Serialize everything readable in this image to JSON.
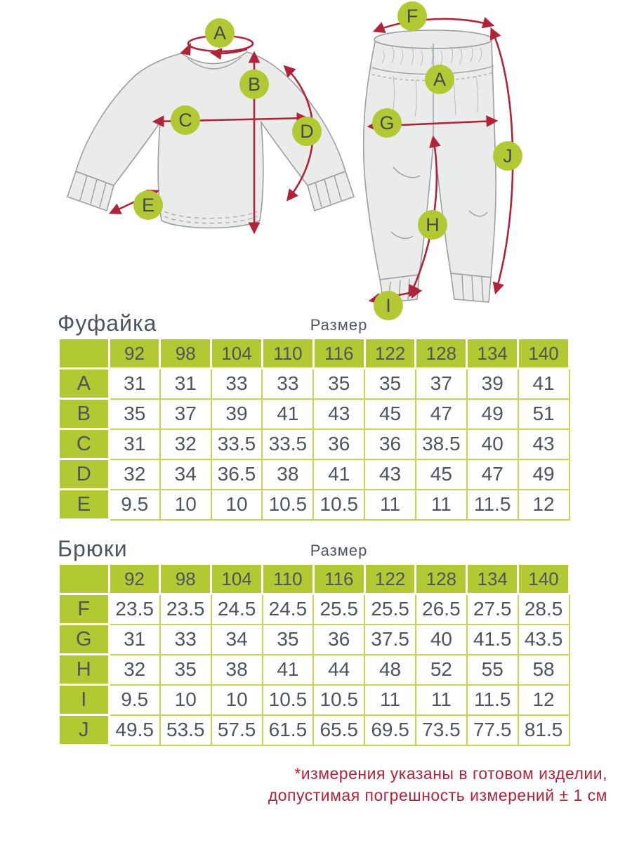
{
  "page": {
    "footnote_line1": "*измерения указаны в готовом изделии,",
    "footnote_line2": "допустимая погрешность измерений ± 1 см"
  },
  "colors": {
    "green": "#b3c934",
    "grid_green": "#c6d54f",
    "text_dark": "#4d5560",
    "red": "#b02338",
    "garment_fill": "#eaeceb",
    "garment_line": "#9b9ea0"
  },
  "diagram": {
    "shirt_markers": [
      "A",
      "B",
      "C",
      "D",
      "E"
    ],
    "pants_markers": [
      "F",
      "A",
      "G",
      "J",
      "H",
      "I"
    ]
  },
  "tables": [
    {
      "title": "Фуфайка",
      "size_label": "Размер",
      "sizes": [
        "92",
        "98",
        "104",
        "110",
        "116",
        "122",
        "128",
        "134",
        "140"
      ],
      "rows": [
        {
          "label": "A",
          "values": [
            "31",
            "31",
            "33",
            "33",
            "35",
            "35",
            "37",
            "39",
            "41"
          ]
        },
        {
          "label": "B",
          "values": [
            "35",
            "37",
            "39",
            "41",
            "43",
            "45",
            "47",
            "49",
            "51"
          ]
        },
        {
          "label": "C",
          "values": [
            "31",
            "32",
            "33.5",
            "33.5",
            "36",
            "36",
            "38.5",
            "40",
            "43"
          ]
        },
        {
          "label": "D",
          "values": [
            "32",
            "34",
            "36.5",
            "38",
            "41",
            "43",
            "45",
            "47",
            "49"
          ]
        },
        {
          "label": "E",
          "values": [
            "9.5",
            "10",
            "10",
            "10.5",
            "10.5",
            "11",
            "11",
            "11.5",
            "12"
          ]
        }
      ]
    },
    {
      "title": "Брюки",
      "size_label": "Размер",
      "sizes": [
        "92",
        "98",
        "104",
        "110",
        "116",
        "122",
        "128",
        "134",
        "140"
      ],
      "rows": [
        {
          "label": "F",
          "values": [
            "23.5",
            "23.5",
            "24.5",
            "24.5",
            "25.5",
            "25.5",
            "26.5",
            "27.5",
            "28.5"
          ]
        },
        {
          "label": "G",
          "values": [
            "31",
            "33",
            "34",
            "35",
            "36",
            "37.5",
            "40",
            "41.5",
            "43.5"
          ]
        },
        {
          "label": "H",
          "values": [
            "32",
            "35",
            "38",
            "41",
            "44",
            "48",
            "52",
            "55",
            "58"
          ]
        },
        {
          "label": "I",
          "values": [
            "9.5",
            "10",
            "10",
            "10.5",
            "10.5",
            "11",
            "11",
            "11.5",
            "12"
          ]
        },
        {
          "label": "J",
          "values": [
            "49.5",
            "53.5",
            "57.5",
            "61.5",
            "65.5",
            "69.5",
            "73.5",
            "77.5",
            "81.5"
          ]
        }
      ]
    }
  ]
}
